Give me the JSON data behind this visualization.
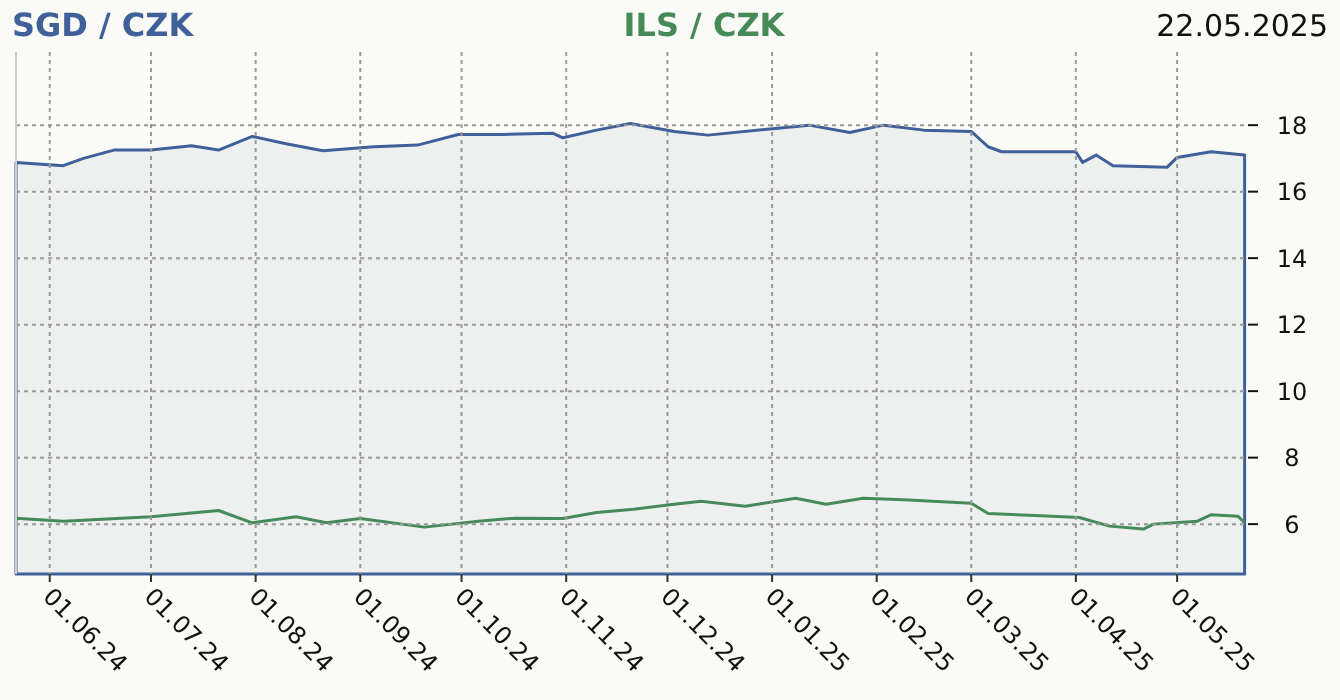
{
  "chart_data": {
    "type": "line",
    "title": "22.05.2025",
    "legend": "top",
    "grid": true,
    "xlim": [
      "2024-05-22",
      "2025-05-22"
    ],
    "xticks": [
      {
        "value": "2024-06-01",
        "label": "01.06.24"
      },
      {
        "value": "2024-07-01",
        "label": "01.07.24"
      },
      {
        "value": "2024-08-01",
        "label": "01.08.24"
      },
      {
        "value": "2024-09-01",
        "label": "01.09.24"
      },
      {
        "value": "2024-10-01",
        "label": "01.10.24"
      },
      {
        "value": "2024-11-01",
        "label": "01.11.24"
      },
      {
        "value": "2024-12-01",
        "label": "01.12.24"
      },
      {
        "value": "2025-01-01",
        "label": "01.01.25"
      },
      {
        "value": "2025-02-01",
        "label": "01.02.25"
      },
      {
        "value": "2025-03-01",
        "label": "01.03.25"
      },
      {
        "value": "2025-04-01",
        "label": "01.04.25"
      },
      {
        "value": "2025-05-01",
        "label": "01.05.25"
      }
    ],
    "ylim": [
      4.5,
      20.2
    ],
    "yticks": [
      6,
      8,
      10,
      12,
      14,
      16,
      18
    ],
    "series": [
      {
        "name": "SGD / CZK",
        "type": "area",
        "color": "#40609a",
        "x": [
          "2024-05-22",
          "2024-06-05",
          "2024-06-11",
          "2024-06-20",
          "2024-07-01",
          "2024-07-13",
          "2024-07-21",
          "2024-07-31",
          "2024-08-10",
          "2024-08-21",
          "2024-09-05",
          "2024-09-18",
          "2024-09-30",
          "2024-10-13",
          "2024-10-28",
          "2024-10-31",
          "2024-11-10",
          "2024-11-20",
          "2024-12-03",
          "2024-12-13",
          "2025-01-12",
          "2025-01-24",
          "2025-02-03",
          "2025-02-15",
          "2025-03-01",
          "2025-03-06",
          "2025-03-10",
          "2025-04-01",
          "2025-04-03",
          "2025-04-07",
          "2025-04-12",
          "2025-04-28",
          "2025-05-01",
          "2025-05-11",
          "2025-05-21"
        ],
        "values": [
          16.88,
          16.78,
          17.0,
          17.25,
          17.25,
          17.38,
          17.25,
          17.66,
          17.44,
          17.23,
          17.35,
          17.4,
          17.72,
          17.72,
          17.76,
          17.62,
          17.85,
          18.05,
          17.81,
          17.7,
          18.0,
          17.78,
          18.0,
          17.85,
          17.81,
          17.35,
          17.2,
          17.2,
          16.88,
          17.1,
          16.78,
          16.73,
          17.03,
          17.2,
          17.1
        ]
      },
      {
        "name": "ILS / CZK",
        "color": "#468a5a",
        "x": [
          "2024-05-22",
          "2024-06-05",
          "2024-07-01",
          "2024-07-21",
          "2024-07-31",
          "2024-08-13",
          "2024-08-22",
          "2024-09-01",
          "2024-09-20",
          "2024-10-06",
          "2024-10-17",
          "2024-10-31",
          "2024-11-10",
          "2024-11-21",
          "2024-12-03",
          "2024-12-11",
          "2024-12-24",
          "2025-01-08",
          "2025-01-17",
          "2025-01-28",
          "2025-02-09",
          "2025-03-01",
          "2025-03-06",
          "2025-03-20",
          "2025-04-02",
          "2025-04-11",
          "2025-04-21",
          "2025-04-24",
          "2025-05-07",
          "2025-05-11",
          "2025-05-19",
          "2025-05-21"
        ],
        "values": [
          6.18,
          6.09,
          6.22,
          6.41,
          6.04,
          6.22,
          6.04,
          6.17,
          5.91,
          6.09,
          6.18,
          6.17,
          6.35,
          6.45,
          6.6,
          6.69,
          6.54,
          6.78,
          6.6,
          6.78,
          6.73,
          6.63,
          6.32,
          6.26,
          6.2,
          5.94,
          5.85,
          6.0,
          6.09,
          6.28,
          6.24,
          6.04
        ]
      }
    ]
  }
}
